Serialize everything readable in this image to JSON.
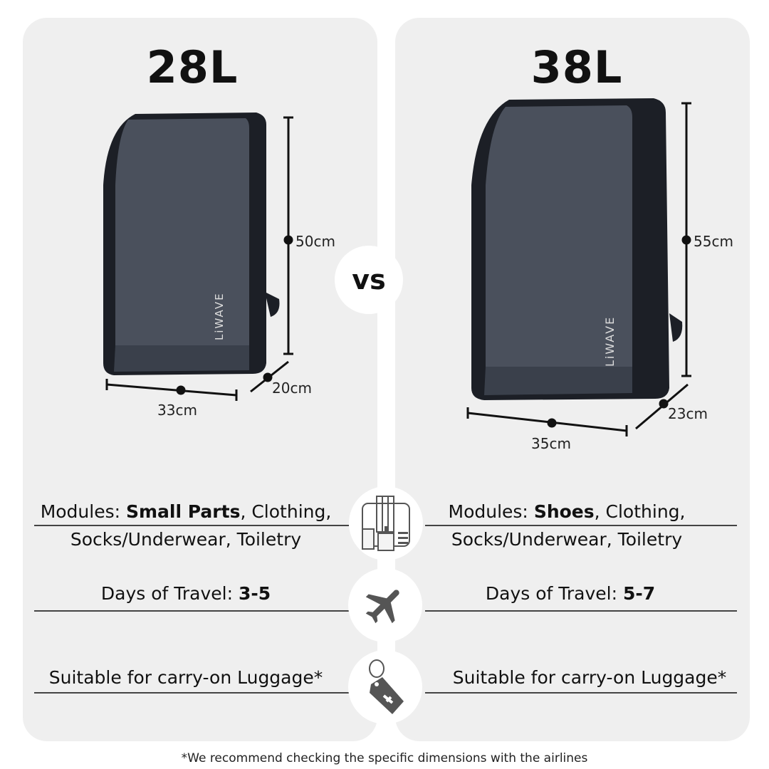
{
  "left": {
    "title": "28L",
    "height": "50cm",
    "width": "33cm",
    "depth": "20cm",
    "modules_prefix": "Modules: ",
    "modules_bold": "Small Parts",
    "modules_rest": ", Clothing,",
    "modules_line2": "Socks/Underwear, Toiletry",
    "days_prefix": "Days of Travel: ",
    "days_value": "3-5",
    "carry_on": "Suitable for carry-on Luggage*",
    "brand": "LiWAVE"
  },
  "right": {
    "title": "38L",
    "height": "55cm",
    "width": "35cm",
    "depth": "23cm",
    "modules_prefix": "Modules: ",
    "modules_bold": "Shoes",
    "modules_rest": ", Clothing,",
    "modules_line2": "Socks/Underwear, Toiletry",
    "days_prefix": "Days of Travel: ",
    "days_value": "5-7",
    "carry_on": "Suitable for carry-on Luggage*",
    "brand": "LiWAVE"
  },
  "vs": "vs",
  "icons": [
    "packing-modules-icon",
    "airplane-icon",
    "luggage-tag-icon"
  ],
  "footnote": "*We recommend checking the specific dimensions with the airlines",
  "colors": {
    "panel": "#efefef",
    "bag": "#3d4350",
    "bag_dark": "#1c1f26",
    "icon": "#555555"
  }
}
